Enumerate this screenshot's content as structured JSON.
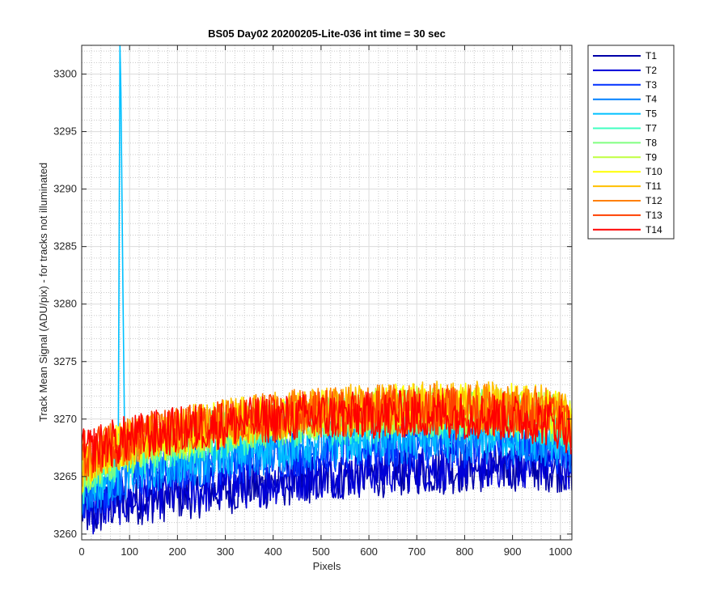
{
  "chart_data": {
    "type": "line",
    "title": "BS05 Day02 20200205-Lite-036 int time = 30 sec",
    "xlabel": "Pixels",
    "ylabel": "Track Mean Signal (ADU/pix) - for tracks not illuminated",
    "xlim": [
      0,
      1024
    ],
    "ylim": [
      3259.5,
      3302.5
    ],
    "x_ticks": [
      0,
      100,
      200,
      300,
      400,
      500,
      600,
      700,
      800,
      900,
      1000
    ],
    "y_ticks": [
      3260,
      3265,
      3270,
      3275,
      3280,
      3285,
      3290,
      3295,
      3300
    ],
    "grid": "major and minor",
    "legend_position": "outside top-right",
    "series": [
      {
        "name": "T1",
        "color": "#0000a8",
        "x": [
          0,
          25,
          50,
          100,
          150,
          200,
          250,
          300,
          350,
          400,
          450,
          500,
          550,
          600,
          650,
          700,
          750,
          800,
          850,
          900,
          950,
          1000,
          1024
        ],
        "y": [
          3262.0,
          3261.5,
          3262.3,
          3262.8,
          3263.0,
          3263.3,
          3263.5,
          3263.8,
          3264.0,
          3264.3,
          3264.6,
          3264.8,
          3265.0,
          3265.2,
          3265.3,
          3265.5,
          3265.5,
          3265.6,
          3265.7,
          3265.8,
          3265.8,
          3265.7,
          3265.6
        ]
      },
      {
        "name": "T2",
        "color": "#0000d8",
        "x": [
          0,
          25,
          50,
          100,
          150,
          200,
          250,
          300,
          350,
          400,
          450,
          500,
          550,
          600,
          650,
          700,
          750,
          800,
          850,
          900,
          950,
          1000,
          1024
        ],
        "y": [
          3262.3,
          3262.0,
          3262.6,
          3263.0,
          3263.3,
          3263.6,
          3263.8,
          3264.1,
          3264.3,
          3264.6,
          3264.9,
          3265.1,
          3265.3,
          3265.5,
          3265.6,
          3265.8,
          3265.8,
          3265.9,
          3266.0,
          3266.1,
          3266.1,
          3266.0,
          3265.9
        ]
      },
      {
        "name": "T3",
        "color": "#0030ff",
        "x": [
          0,
          25,
          50,
          100,
          150,
          200,
          250,
          300,
          350,
          400,
          450,
          500,
          550,
          600,
          650,
          700,
          750,
          800,
          850,
          900,
          950,
          1000,
          1024
        ],
        "y": [
          3263.0,
          3263.5,
          3264.0,
          3264.8,
          3265.3,
          3265.7,
          3266.0,
          3266.3,
          3266.6,
          3266.9,
          3267.1,
          3267.3,
          3267.5,
          3267.6,
          3267.7,
          3267.8,
          3267.8,
          3267.8,
          3267.8,
          3267.7,
          3267.6,
          3267.3,
          3267.0
        ]
      },
      {
        "name": "T4",
        "color": "#0080ff",
        "x": [
          0,
          25,
          50,
          100,
          150,
          200,
          250,
          300,
          350,
          400,
          450,
          500,
          550,
          600,
          650,
          700,
          750,
          800,
          850,
          900,
          950,
          1000,
          1024
        ],
        "y": [
          3263.5,
          3264.0,
          3264.5,
          3265.2,
          3265.7,
          3266.1,
          3266.4,
          3266.7,
          3267.0,
          3267.3,
          3267.5,
          3267.7,
          3267.9,
          3268.0,
          3268.1,
          3268.2,
          3268.2,
          3268.2,
          3268.2,
          3268.1,
          3268.0,
          3267.7,
          3267.4
        ]
      },
      {
        "name": "T5",
        "color": "#00c0ff",
        "x": [
          0,
          25,
          50,
          70,
          77,
          79,
          81,
          90,
          100,
          150,
          200,
          250,
          300,
          350,
          400,
          450,
          500,
          550,
          600,
          650,
          700,
          750,
          800,
          850,
          900,
          950,
          1000,
          1024
        ],
        "y": [
          3264.0,
          3264.5,
          3265.0,
          3265.4,
          3265.5,
          3302.5,
          3302.5,
          3265.6,
          3265.7,
          3266.2,
          3266.6,
          3266.9,
          3267.2,
          3267.5,
          3267.8,
          3268.0,
          3268.2,
          3268.4,
          3268.5,
          3268.6,
          3268.7,
          3268.7,
          3268.7,
          3268.7,
          3268.6,
          3268.5,
          3268.2,
          3267.9
        ]
      },
      {
        "name": "T7",
        "color": "#40ffc0",
        "x": [
          0,
          25,
          50,
          100,
          150,
          200,
          250,
          300,
          350,
          400,
          450,
          500,
          550,
          600,
          650,
          700,
          750,
          800,
          850,
          900,
          950,
          1000,
          1024
        ],
        "y": [
          3264.5,
          3265.3,
          3266.0,
          3266.9,
          3267.4,
          3267.9,
          3268.3,
          3268.7,
          3269.0,
          3269.3,
          3269.5,
          3269.7,
          3269.9,
          3270.0,
          3270.1,
          3270.2,
          3270.2,
          3270.2,
          3270.2,
          3270.1,
          3270.0,
          3269.6,
          3269.2
        ]
      },
      {
        "name": "T8",
        "color": "#80ff80",
        "x": [
          0,
          25,
          50,
          100,
          150,
          200,
          250,
          300,
          350,
          400,
          450,
          500,
          550,
          600,
          650,
          700,
          750,
          800,
          850,
          900,
          950,
          1000,
          1024
        ],
        "y": [
          3264.8,
          3265.6,
          3266.3,
          3267.2,
          3267.7,
          3268.2,
          3268.6,
          3269.0,
          3269.3,
          3269.6,
          3269.8,
          3270.0,
          3270.2,
          3270.3,
          3270.4,
          3270.5,
          3270.5,
          3270.5,
          3270.5,
          3270.4,
          3270.3,
          3269.9,
          3269.5
        ]
      },
      {
        "name": "T9",
        "color": "#c0ff40",
        "x": [
          0,
          25,
          50,
          100,
          150,
          200,
          250,
          300,
          350,
          400,
          450,
          500,
          550,
          600,
          650,
          700,
          750,
          800,
          850,
          900,
          950,
          1000,
          1024
        ],
        "y": [
          3265.2,
          3266.0,
          3266.7,
          3267.5,
          3268.0,
          3268.5,
          3268.9,
          3269.3,
          3269.6,
          3269.9,
          3270.1,
          3270.3,
          3270.5,
          3270.6,
          3270.7,
          3270.8,
          3270.8,
          3270.8,
          3270.8,
          3270.7,
          3270.6,
          3270.2,
          3269.8
        ]
      },
      {
        "name": "T10",
        "color": "#ffff00",
        "x": [
          0,
          25,
          50,
          100,
          150,
          200,
          250,
          300,
          350,
          400,
          450,
          500,
          550,
          600,
          650,
          700,
          750,
          800,
          850,
          900,
          950,
          1000,
          1024
        ],
        "y": [
          3265.6,
          3266.4,
          3267.0,
          3267.8,
          3268.3,
          3268.8,
          3269.2,
          3269.6,
          3269.9,
          3270.2,
          3270.4,
          3270.6,
          3270.8,
          3270.9,
          3271.0,
          3271.1,
          3271.1,
          3271.1,
          3271.1,
          3271.0,
          3270.9,
          3270.5,
          3270.1
        ]
      },
      {
        "name": "T11",
        "color": "#ffc000",
        "x": [
          0,
          25,
          50,
          100,
          150,
          200,
          250,
          300,
          350,
          400,
          450,
          500,
          550,
          600,
          650,
          700,
          750,
          800,
          850,
          900,
          950,
          1000,
          1024
        ],
        "y": [
          3266.0,
          3266.7,
          3267.3,
          3268.0,
          3268.5,
          3268.9,
          3269.3,
          3269.7,
          3270.0,
          3270.3,
          3270.5,
          3270.7,
          3270.9,
          3271.0,
          3271.1,
          3271.2,
          3271.2,
          3271.2,
          3271.2,
          3271.1,
          3271.0,
          3270.6,
          3270.2
        ]
      },
      {
        "name": "T12",
        "color": "#ff8000",
        "x": [
          0,
          25,
          50,
          100,
          150,
          200,
          250,
          300,
          350,
          400,
          450,
          500,
          550,
          600,
          650,
          700,
          750,
          800,
          850,
          900,
          950,
          1000,
          1024
        ],
        "y": [
          3266.4,
          3267.0,
          3267.5,
          3268.2,
          3268.6,
          3269.0,
          3269.4,
          3269.7,
          3270.0,
          3270.3,
          3270.5,
          3270.6,
          3270.8,
          3270.9,
          3271.0,
          3271.0,
          3271.0,
          3271.0,
          3271.0,
          3270.9,
          3270.8,
          3270.4,
          3270.0
        ]
      },
      {
        "name": "T13",
        "color": "#ff4000",
        "x": [
          0,
          25,
          50,
          100,
          150,
          200,
          250,
          300,
          350,
          400,
          450,
          500,
          550,
          600,
          650,
          700,
          750,
          800,
          850,
          900,
          950,
          1000,
          1024
        ],
        "y": [
          3266.8,
          3267.3,
          3267.7,
          3268.3,
          3268.7,
          3269.0,
          3269.3,
          3269.6,
          3269.9,
          3270.1,
          3270.3,
          3270.4,
          3270.5,
          3270.6,
          3270.6,
          3270.7,
          3270.7,
          3270.7,
          3270.6,
          3270.5,
          3270.3,
          3269.8,
          3269.3
        ]
      },
      {
        "name": "T14",
        "color": "#ff0000",
        "x": [
          0,
          25,
          50,
          100,
          150,
          200,
          250,
          300,
          350,
          400,
          450,
          500,
          550,
          600,
          650,
          700,
          750,
          800,
          850,
          900,
          950,
          1000,
          1024
        ],
        "y": [
          3267.0,
          3267.4,
          3267.8,
          3268.3,
          3268.7,
          3269.0,
          3269.3,
          3269.5,
          3269.8,
          3270.0,
          3270.1,
          3270.2,
          3270.3,
          3270.3,
          3270.4,
          3270.4,
          3270.4,
          3270.3,
          3270.3,
          3270.1,
          3269.9,
          3269.4,
          3268.9
        ]
      }
    ]
  }
}
